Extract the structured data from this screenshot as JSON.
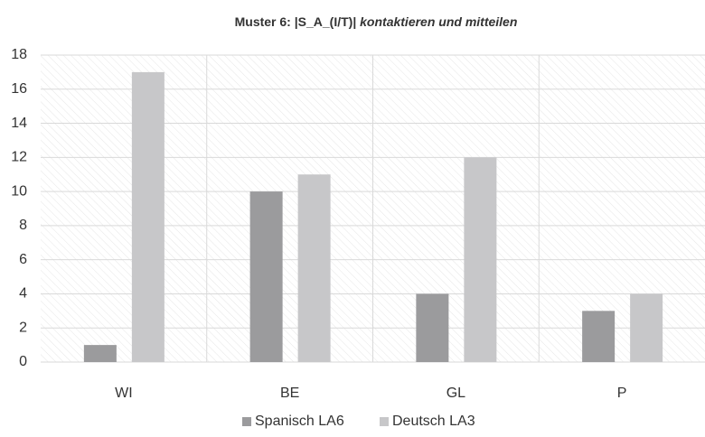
{
  "chart_data": {
    "type": "bar",
    "title": [
      "Muster 6: |S_A_(I/T)|",
      "kontaktieren und mitteilen"
    ],
    "categories": [
      "WI",
      "BE",
      "GL",
      "P"
    ],
    "series": [
      {
        "name": "Spanisch LA6",
        "color": "#9b9b9d",
        "values": [
          1,
          10,
          4,
          3
        ]
      },
      {
        "name": "Deutsch LA3",
        "color": "#c7c7c9",
        "values": [
          17,
          11,
          12,
          4
        ]
      }
    ],
    "ylim": [
      0,
      18
    ],
    "yticks": [
      0,
      2,
      4,
      6,
      8,
      10,
      12,
      14,
      16,
      18
    ],
    "grid": true,
    "legend": "bottom"
  }
}
